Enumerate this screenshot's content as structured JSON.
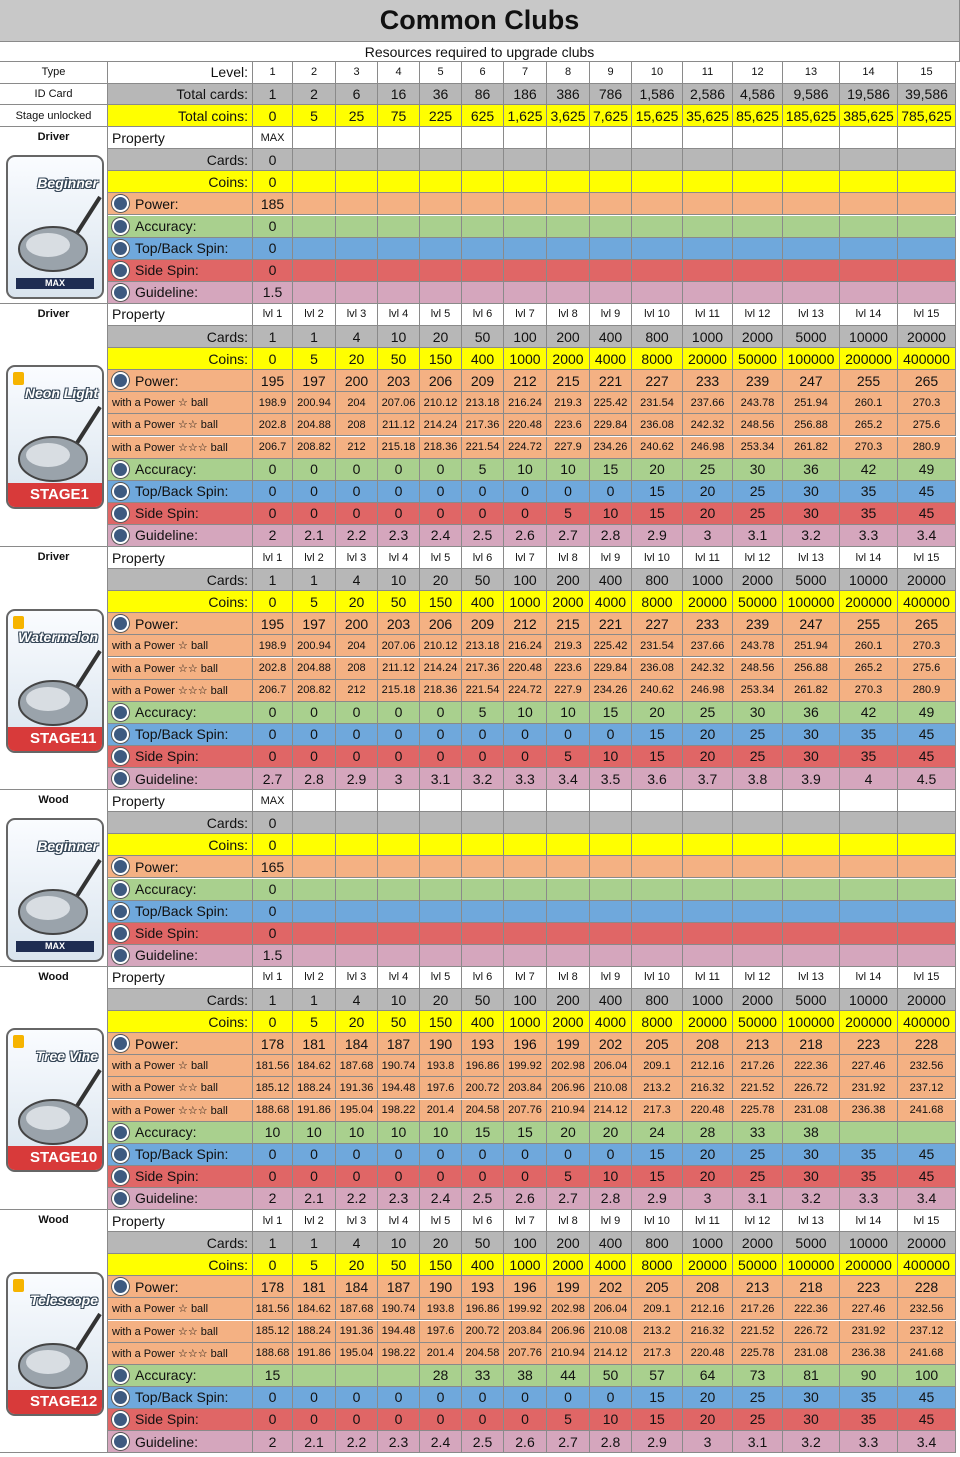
{
  "title": "Common Clubs",
  "subtitle": "Resources required to upgrade clubs",
  "header": {
    "left": [
      "Type",
      "ID Card",
      "Stage unlocked"
    ],
    "labels": [
      "Level:",
      "Total cards:",
      "Total coins:"
    ],
    "levels": [
      1,
      2,
      3,
      4,
      5,
      6,
      7,
      8,
      9,
      10,
      11,
      12,
      13,
      14,
      15
    ],
    "total_cards": [
      1,
      2,
      6,
      16,
      36,
      86,
      186,
      386,
      786,
      "1,586",
      "2,586",
      "4,586",
      "9,586",
      "19,586",
      "39,586"
    ],
    "total_coins": [
      0,
      5,
      25,
      75,
      225,
      625,
      "1,625",
      "3,625",
      "7,625",
      "15,625",
      "35,625",
      "85,625",
      "185,625",
      "385,625",
      "785,625"
    ]
  },
  "sections": [
    {
      "type": "Driver",
      "card": {
        "name": "Beginner",
        "badge": "MAX"
      },
      "property": "Property",
      "levels": [
        "MAX"
      ],
      "rows": {
        "cards": {
          "label": "Cards:",
          "values": [
            0
          ]
        },
        "coins": {
          "label": "Coins:",
          "values": [
            0
          ]
        },
        "power": {
          "label": "Power:",
          "values": [
            185
          ]
        },
        "accuracy": {
          "label": "Accuracy:",
          "values": [
            0
          ]
        },
        "topback": {
          "label": "Top/Back Spin:",
          "values": [
            0
          ]
        },
        "sidespin": {
          "label": "Side Spin:",
          "values": [
            0
          ]
        },
        "guideline": {
          "label": "Guideline:",
          "values": [
            1.5
          ]
        }
      }
    },
    {
      "type": "Driver",
      "card": {
        "name": "Neon Light",
        "badge": "STAGE1"
      },
      "property": "Property",
      "levels": [
        "lvl 1",
        "lvl 2",
        "lvl 3",
        "lvl 4",
        "lvl 5",
        "lvl 6",
        "lvl 7",
        "lvl 8",
        "lvl 9",
        "lvl 10",
        "lvl 11",
        "lvl 12",
        "lvl 13",
        "lvl 14",
        "lvl 15"
      ],
      "rows": {
        "cards": {
          "label": "Cards:",
          "values": [
            1,
            1,
            4,
            10,
            20,
            50,
            100,
            200,
            400,
            800,
            1000,
            2000,
            5000,
            10000,
            20000
          ]
        },
        "coins": {
          "label": "Coins:",
          "values": [
            0,
            5,
            20,
            50,
            150,
            400,
            1000,
            2000,
            4000,
            8000,
            20000,
            50000,
            100000,
            200000,
            400000
          ]
        },
        "power": {
          "label": "Power:",
          "values": [
            195,
            197,
            200,
            203,
            206,
            209,
            212,
            215,
            221,
            227,
            233,
            239,
            247,
            255,
            265
          ]
        },
        "ball1": {
          "label": "with a Power ☆ ball",
          "values": [
            198.9,
            200.94,
            204,
            207.06,
            210.12,
            213.18,
            216.24,
            219.3,
            225.42,
            231.54,
            237.66,
            243.78,
            251.94,
            260.1,
            270.3
          ]
        },
        "ball2": {
          "label": "with a Power ☆☆ ball",
          "values": [
            202.8,
            204.88,
            208,
            211.12,
            214.24,
            217.36,
            220.48,
            223.6,
            229.84,
            236.08,
            242.32,
            248.56,
            256.88,
            265.2,
            275.6
          ]
        },
        "ball3": {
          "label": "with a Power ☆☆☆ ball",
          "values": [
            206.7,
            208.82,
            212,
            215.18,
            218.36,
            221.54,
            224.72,
            227.9,
            234.26,
            240.62,
            246.98,
            253.34,
            261.82,
            270.3,
            280.9
          ]
        },
        "accuracy": {
          "label": "Accuracy:",
          "values": [
            0,
            0,
            0,
            0,
            0,
            5,
            10,
            10,
            15,
            20,
            25,
            30,
            36,
            42,
            49
          ]
        },
        "topback": {
          "label": "Top/Back Spin:",
          "values": [
            0,
            0,
            0,
            0,
            0,
            0,
            0,
            0,
            0,
            15,
            20,
            25,
            30,
            35,
            45
          ]
        },
        "sidespin": {
          "label": "Side Spin:",
          "values": [
            0,
            0,
            0,
            0,
            0,
            0,
            0,
            5,
            10,
            15,
            20,
            25,
            30,
            35,
            45
          ]
        },
        "guideline": {
          "label": "Guideline:",
          "values": [
            2,
            2.1,
            2.2,
            2.3,
            2.4,
            2.5,
            2.6,
            2.7,
            2.8,
            2.9,
            3,
            3.1,
            3.2,
            3.3,
            3.4
          ]
        }
      }
    },
    {
      "type": "Driver",
      "card": {
        "name": "Watermelon",
        "badge": "STAGE11"
      },
      "property": "Property",
      "levels": [
        "lvl 1",
        "lvl 2",
        "lvl 3",
        "lvl 4",
        "lvl 5",
        "lvl 6",
        "lvl 7",
        "lvl 8",
        "lvl 9",
        "lvl 10",
        "lvl 11",
        "lvl 12",
        "lvl 13",
        "lvl 14",
        "lvl 15"
      ],
      "rows": {
        "cards": {
          "label": "Cards:",
          "values": [
            1,
            1,
            4,
            10,
            20,
            50,
            100,
            200,
            400,
            800,
            1000,
            2000,
            5000,
            10000,
            20000
          ]
        },
        "coins": {
          "label": "Coins:",
          "values": [
            0,
            5,
            20,
            50,
            150,
            400,
            1000,
            2000,
            4000,
            8000,
            20000,
            50000,
            100000,
            200000,
            400000
          ]
        },
        "power": {
          "label": "Power:",
          "values": [
            195,
            197,
            200,
            203,
            206,
            209,
            212,
            215,
            221,
            227,
            233,
            239,
            247,
            255,
            265
          ]
        },
        "ball1": {
          "label": "with a Power ☆ ball",
          "values": [
            198.9,
            200.94,
            204,
            207.06,
            210.12,
            213.18,
            216.24,
            219.3,
            225.42,
            231.54,
            237.66,
            243.78,
            251.94,
            260.1,
            270.3
          ]
        },
        "ball2": {
          "label": "with a Power ☆☆ ball",
          "values": [
            202.8,
            204.88,
            208,
            211.12,
            214.24,
            217.36,
            220.48,
            223.6,
            229.84,
            236.08,
            242.32,
            248.56,
            256.88,
            265.2,
            275.6
          ]
        },
        "ball3": {
          "label": "with a Power ☆☆☆ ball",
          "values": [
            206.7,
            208.82,
            212,
            215.18,
            218.36,
            221.54,
            224.72,
            227.9,
            234.26,
            240.62,
            246.98,
            253.34,
            261.82,
            270.3,
            280.9
          ]
        },
        "accuracy": {
          "label": "Accuracy:",
          "values": [
            0,
            0,
            0,
            0,
            0,
            5,
            10,
            10,
            15,
            20,
            25,
            30,
            36,
            42,
            49
          ]
        },
        "topback": {
          "label": "Top/Back Spin:",
          "values": [
            0,
            0,
            0,
            0,
            0,
            0,
            0,
            0,
            0,
            15,
            20,
            25,
            30,
            35,
            45
          ]
        },
        "sidespin": {
          "label": "Side Spin:",
          "values": [
            0,
            0,
            0,
            0,
            0,
            0,
            0,
            5,
            10,
            15,
            20,
            25,
            30,
            35,
            45
          ]
        },
        "guideline": {
          "label": "Guideline:",
          "values": [
            2.7,
            2.8,
            2.9,
            3,
            3.1,
            3.2,
            3.3,
            3.4,
            3.5,
            3.6,
            3.7,
            3.8,
            3.9,
            4,
            4.5
          ]
        }
      }
    },
    {
      "type": "Wood",
      "card": {
        "name": "Beginner",
        "badge": "MAX"
      },
      "property": "Property",
      "levels": [
        "MAX"
      ],
      "rows": {
        "cards": {
          "label": "Cards:",
          "values": [
            0
          ]
        },
        "coins": {
          "label": "Coins:",
          "values": [
            0
          ]
        },
        "power": {
          "label": "Power:",
          "values": [
            165
          ]
        },
        "accuracy": {
          "label": "Accuracy:",
          "values": [
            0
          ]
        },
        "topback": {
          "label": "Top/Back Spin:",
          "values": [
            0
          ]
        },
        "sidespin": {
          "label": "Side Spin:",
          "values": [
            0
          ]
        },
        "guideline": {
          "label": "Guideline:",
          "values": [
            1.5
          ]
        }
      }
    },
    {
      "type": "Wood",
      "card": {
        "name": "Tree Vine",
        "badge": "STAGE10"
      },
      "property": "Property",
      "levels": [
        "lvl 1",
        "lvl 2",
        "lvl 3",
        "lvl 4",
        "lvl 5",
        "lvl 6",
        "lvl 7",
        "lvl 8",
        "lvl 9",
        "lvl 10",
        "lvl 11",
        "lvl 12",
        "lvl 13",
        "lvl 14",
        "lvl 15"
      ],
      "rows": {
        "cards": {
          "label": "Cards:",
          "values": [
            1,
            1,
            4,
            10,
            20,
            50,
            100,
            200,
            400,
            800,
            1000,
            2000,
            5000,
            10000,
            20000
          ]
        },
        "coins": {
          "label": "Coins:",
          "values": [
            0,
            5,
            20,
            50,
            150,
            400,
            1000,
            2000,
            4000,
            8000,
            20000,
            50000,
            100000,
            200000,
            400000
          ]
        },
        "power": {
          "label": "Power:",
          "values": [
            178,
            181,
            184,
            187,
            190,
            193,
            196,
            199,
            202,
            205,
            208,
            213,
            218,
            223,
            228
          ]
        },
        "ball1": {
          "label": "with a Power ☆ ball",
          "values": [
            181.56,
            184.62,
            187.68,
            190.74,
            193.8,
            196.86,
            199.92,
            202.98,
            206.04,
            209.1,
            212.16,
            217.26,
            222.36,
            227.46,
            232.56
          ]
        },
        "ball2": {
          "label": "with a Power ☆☆ ball",
          "values": [
            185.12,
            188.24,
            191.36,
            194.48,
            197.6,
            200.72,
            203.84,
            206.96,
            210.08,
            213.2,
            216.32,
            221.52,
            226.72,
            231.92,
            237.12
          ]
        },
        "ball3": {
          "label": "with a Power ☆☆☆ ball",
          "values": [
            188.68,
            191.86,
            195.04,
            198.22,
            201.4,
            204.58,
            207.76,
            210.94,
            214.12,
            217.3,
            220.48,
            225.78,
            231.08,
            236.38,
            241.68
          ]
        },
        "accuracy": {
          "label": "Accuracy:",
          "values": [
            10,
            10,
            10,
            10,
            10,
            15,
            15,
            20,
            20,
            24,
            28,
            33,
            38,
            null,
            null
          ]
        },
        "topback": {
          "label": "Top/Back Spin:",
          "values": [
            0,
            0,
            0,
            0,
            0,
            0,
            0,
            0,
            0,
            15,
            20,
            25,
            30,
            35,
            45
          ]
        },
        "sidespin": {
          "label": "Side Spin:",
          "values": [
            0,
            0,
            0,
            0,
            0,
            0,
            0,
            5,
            10,
            15,
            20,
            25,
            30,
            35,
            45
          ]
        },
        "guideline": {
          "label": "Guideline:",
          "values": [
            2,
            2.1,
            2.2,
            2.3,
            2.4,
            2.5,
            2.6,
            2.7,
            2.8,
            2.9,
            3,
            3.1,
            3.2,
            3.3,
            3.4
          ]
        }
      }
    },
    {
      "type": "Wood",
      "card": {
        "name": "Telescope",
        "badge": "STAGE12"
      },
      "property": "Property",
      "levels": [
        "lvl 1",
        "lvl 2",
        "lvl 3",
        "lvl 4",
        "lvl 5",
        "lvl 6",
        "lvl 7",
        "lvl 8",
        "lvl 9",
        "lvl 10",
        "lvl 11",
        "lvl 12",
        "lvl 13",
        "lvl 14",
        "lvl 15"
      ],
      "rows": {
        "cards": {
          "label": "Cards:",
          "values": [
            1,
            1,
            4,
            10,
            20,
            50,
            100,
            200,
            400,
            800,
            1000,
            2000,
            5000,
            10000,
            20000
          ]
        },
        "coins": {
          "label": "Coins:",
          "values": [
            0,
            5,
            20,
            50,
            150,
            400,
            1000,
            2000,
            4000,
            8000,
            20000,
            50000,
            100000,
            200000,
            400000
          ]
        },
        "power": {
          "label": "Power:",
          "values": [
            178,
            181,
            184,
            187,
            190,
            193,
            196,
            199,
            202,
            205,
            208,
            213,
            218,
            223,
            228
          ]
        },
        "ball1": {
          "label": "with a Power ☆ ball",
          "values": [
            181.56,
            184.62,
            187.68,
            190.74,
            193.8,
            196.86,
            199.92,
            202.98,
            206.04,
            209.1,
            212.16,
            217.26,
            222.36,
            227.46,
            232.56
          ]
        },
        "ball2": {
          "label": "with a Power ☆☆ ball",
          "values": [
            185.12,
            188.24,
            191.36,
            194.48,
            197.6,
            200.72,
            203.84,
            206.96,
            210.08,
            213.2,
            216.32,
            221.52,
            226.72,
            231.92,
            237.12
          ]
        },
        "ball3": {
          "label": "with a Power ☆☆☆ ball",
          "values": [
            188.68,
            191.86,
            195.04,
            198.22,
            201.4,
            204.58,
            207.76,
            210.94,
            214.12,
            217.3,
            220.48,
            225.78,
            231.08,
            236.38,
            241.68
          ]
        },
        "accuracy": {
          "label": "Accuracy:",
          "values": [
            15,
            null,
            null,
            null,
            28,
            33,
            38,
            44,
            50,
            57,
            64,
            73,
            81,
            90,
            100
          ]
        },
        "topback": {
          "label": "Top/Back Spin:",
          "values": [
            0,
            0,
            0,
            0,
            0,
            0,
            0,
            0,
            0,
            15,
            20,
            25,
            30,
            35,
            45
          ]
        },
        "sidespin": {
          "label": "Side Spin:",
          "values": [
            0,
            0,
            0,
            0,
            0,
            0,
            0,
            5,
            10,
            15,
            20,
            25,
            30,
            35,
            45
          ]
        },
        "guideline": {
          "label": "Guideline:",
          "values": [
            2,
            2.1,
            2.2,
            2.3,
            2.4,
            2.5,
            2.6,
            2.7,
            2.8,
            2.9,
            3,
            3.1,
            3.2,
            3.3,
            3.4
          ]
        }
      }
    }
  ]
}
